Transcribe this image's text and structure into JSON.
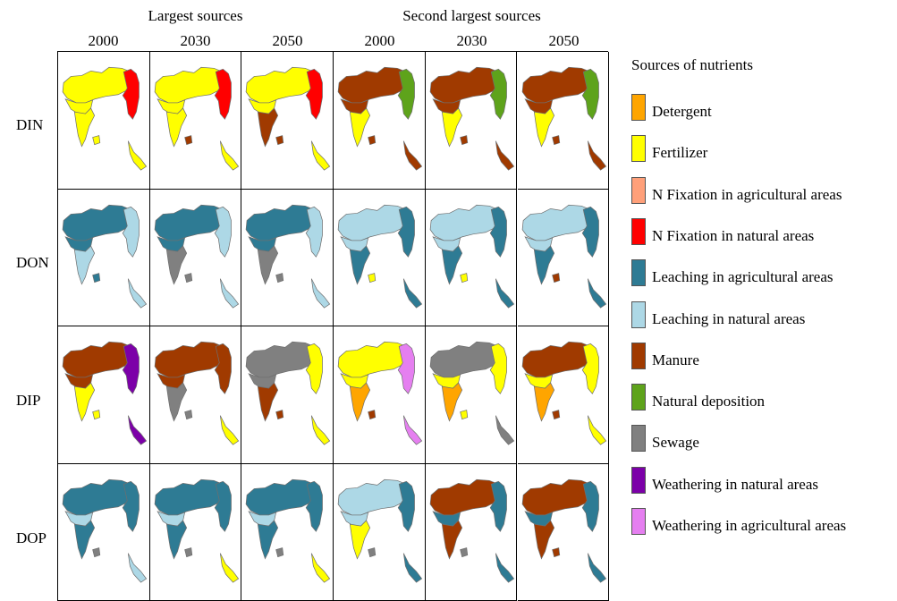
{
  "headers": {
    "groups": [
      "Largest sources",
      "Second largest sources"
    ],
    "years": [
      "2000",
      "2030",
      "2050",
      "2000",
      "2030",
      "2050"
    ]
  },
  "rows": [
    "DIN",
    "DON",
    "DIP",
    "DOP"
  ],
  "legend": {
    "title": "Sources of nutrients",
    "items": [
      {
        "label": "Detergent",
        "color": "#ffa500",
        "icon": "swatch-detergent"
      },
      {
        "label": "Fertilizer",
        "color": "#ffff00",
        "icon": "swatch-fertilizer"
      },
      {
        "label": "N Fixation in agricultural areas",
        "color": "#ffa07a",
        "icon": "swatch-nfix-agri"
      },
      {
        "label": "N Fixation in natural areas",
        "color": "#ff0000",
        "icon": "swatch-nfix-natural"
      },
      {
        "label": "Leaching in agricultural areas",
        "color": "#2e7b94",
        "icon": "swatch-leach-agri"
      },
      {
        "label": "Leaching in natural areas",
        "color": "#add8e6",
        "icon": "swatch-leach-natural"
      },
      {
        "label": "Manure",
        "color": "#a03a00",
        "icon": "swatch-manure"
      },
      {
        "label": "Natural deposition",
        "color": "#5ea31b",
        "icon": "swatch-natdep"
      },
      {
        "label": "Sewage",
        "color": "#808080",
        "icon": "swatch-sewage"
      },
      {
        "label": "Weathering in natural areas",
        "color": "#7c00a8",
        "icon": "swatch-weather-natural"
      },
      {
        "label": "Weathering in agricultural areas",
        "color": "#e57ff0",
        "icon": "swatch-weather-agri"
      }
    ]
  },
  "maps": [
    [
      {
        "main": "Fertilizer",
        "east": "N Fixation in natural areas",
        "south": "Fertilizer",
        "sw": "Fertilizer",
        "island": "Fertilizer",
        "spot": "Fertilizer"
      },
      {
        "main": "Fertilizer",
        "east": "N Fixation in natural areas",
        "south": "Fertilizer",
        "sw": "Fertilizer",
        "island": "Fertilizer",
        "spot": "Manure"
      },
      {
        "main": "Fertilizer",
        "east": "N Fixation in natural areas",
        "south": "Manure",
        "sw": "Fertilizer",
        "island": "Fertilizer",
        "spot": "Manure"
      },
      {
        "main": "Manure",
        "east": "Natural deposition",
        "south": "Fertilizer",
        "sw": "Manure",
        "island": "Manure",
        "spot": "Manure"
      },
      {
        "main": "Manure",
        "east": "Natural deposition",
        "south": "Fertilizer",
        "sw": "Manure",
        "island": "Manure",
        "spot": "Manure"
      },
      {
        "main": "Manure",
        "east": "Natural deposition",
        "south": "Fertilizer",
        "sw": "Manure",
        "island": "Manure",
        "spot": "Manure"
      }
    ],
    [
      {
        "main": "Leaching in agricultural areas",
        "east": "Leaching in natural areas",
        "south": "Leaching in natural areas",
        "sw": "Leaching in agricultural areas",
        "island": "Leaching in natural areas",
        "spot": "Leaching in agricultural areas"
      },
      {
        "main": "Leaching in agricultural areas",
        "east": "Leaching in natural areas",
        "south": "Sewage",
        "sw": "Leaching in agricultural areas",
        "island": "Leaching in natural areas",
        "spot": "Sewage"
      },
      {
        "main": "Leaching in agricultural areas",
        "east": "Leaching in natural areas",
        "south": "Sewage",
        "sw": "Leaching in agricultural areas",
        "island": "Leaching in natural areas",
        "spot": "Sewage"
      },
      {
        "main": "Leaching in natural areas",
        "east": "Leaching in agricultural areas",
        "south": "Leaching in agricultural areas",
        "sw": "Leaching in natural areas",
        "island": "Leaching in agricultural areas",
        "spot": "Fertilizer"
      },
      {
        "main": "Leaching in natural areas",
        "east": "Leaching in agricultural areas",
        "south": "Leaching in agricultural areas",
        "sw": "Leaching in natural areas",
        "island": "Leaching in agricultural areas",
        "spot": "Fertilizer"
      },
      {
        "main": "Leaching in natural areas",
        "east": "Leaching in agricultural areas",
        "south": "Leaching in agricultural areas",
        "sw": "Leaching in natural areas",
        "island": "Leaching in agricultural areas",
        "spot": "Manure"
      }
    ],
    [
      {
        "main": "Manure",
        "east": "Weathering in natural areas",
        "south": "Fertilizer",
        "sw": "Manure",
        "island": "Weathering in natural areas",
        "spot": "Fertilizer"
      },
      {
        "main": "Manure",
        "east": "Manure",
        "south": "Sewage",
        "sw": "Manure",
        "island": "Fertilizer",
        "spot": "Sewage"
      },
      {
        "main": "Sewage",
        "east": "Fertilizer",
        "south": "Manure",
        "sw": "Sewage",
        "island": "Fertilizer",
        "spot": "Manure"
      },
      {
        "main": "Fertilizer",
        "east": "Weathering in agricultural areas",
        "south": "Detergent",
        "sw": "Fertilizer",
        "island": "Weathering in agricultural areas",
        "spot": "Manure"
      },
      {
        "main": "Sewage",
        "east": "Fertilizer",
        "south": "Detergent",
        "sw": "Fertilizer",
        "island": "Sewage",
        "spot": "Fertilizer"
      },
      {
        "main": "Manure",
        "east": "Fertilizer",
        "south": "Detergent",
        "sw": "Fertilizer",
        "island": "Fertilizer",
        "spot": "Manure"
      }
    ],
    [
      {
        "main": "Leaching in agricultural areas",
        "east": "Leaching in agricultural areas",
        "south": "Leaching in agricultural areas",
        "sw": "Leaching in natural areas",
        "island": "Leaching in natural areas",
        "spot": "Sewage"
      },
      {
        "main": "Leaching in agricultural areas",
        "east": "Leaching in agricultural areas",
        "south": "Leaching in agricultural areas",
        "sw": "Leaching in natural areas",
        "island": "Fertilizer",
        "spot": "Sewage"
      },
      {
        "main": "Leaching in agricultural areas",
        "east": "Leaching in agricultural areas",
        "south": "Leaching in agricultural areas",
        "sw": "Leaching in natural areas",
        "island": "Fertilizer",
        "spot": "Sewage"
      },
      {
        "main": "Leaching in natural areas",
        "east": "Leaching in agricultural areas",
        "south": "Fertilizer",
        "sw": "Leaching in natural areas",
        "island": "Leaching in agricultural areas",
        "spot": "Sewage"
      },
      {
        "main": "Manure",
        "east": "Leaching in agricultural areas",
        "south": "Manure",
        "sw": "Leaching in agricultural areas",
        "island": "Leaching in agricultural areas",
        "spot": "Sewage"
      },
      {
        "main": "Manure",
        "east": "Leaching in agricultural areas",
        "south": "Manure",
        "sw": "Leaching in agricultural areas",
        "island": "Leaching in agricultural areas",
        "spot": "Manure"
      }
    ]
  ]
}
